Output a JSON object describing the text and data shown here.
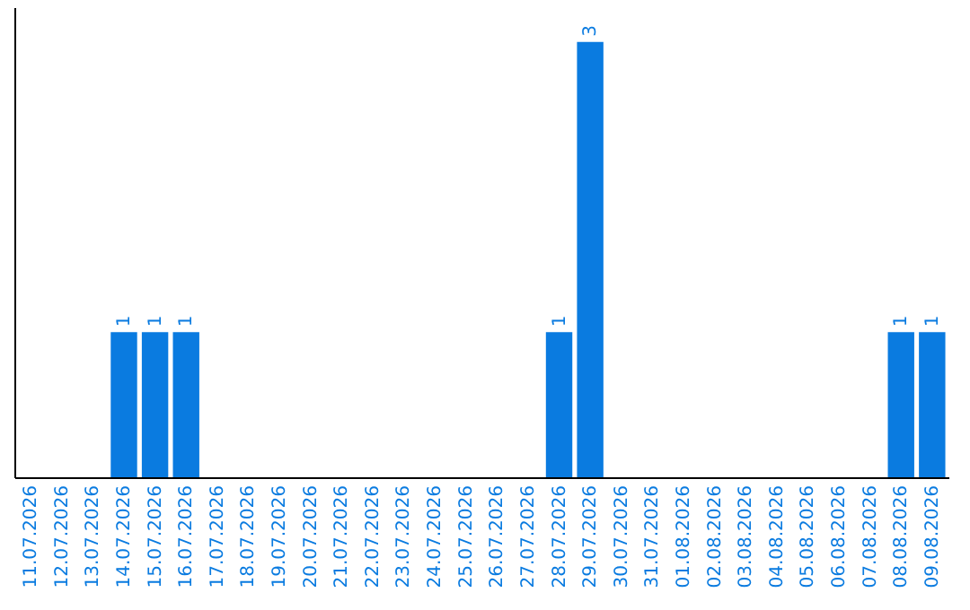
{
  "chart_data": {
    "type": "bar",
    "categories": [
      "11.07.2026",
      "12.07.2026",
      "13.07.2026",
      "14.07.2026",
      "15.07.2026",
      "16.07.2026",
      "17.07.2026",
      "18.07.2026",
      "19.07.2026",
      "20.07.2026",
      "21.07.2026",
      "22.07.2026",
      "23.07.2026",
      "24.07.2026",
      "25.07.2026",
      "26.07.2026",
      "27.07.2026",
      "28.07.2026",
      "29.07.2026",
      "30.07.2026",
      "31.07.2026",
      "01.08.2026",
      "02.08.2026",
      "03.08.2026",
      "04.08.2026",
      "05.08.2026",
      "06.08.2026",
      "07.08.2026",
      "08.08.2026",
      "09.08.2026"
    ],
    "values": [
      0,
      0,
      0,
      1,
      1,
      1,
      0,
      0,
      0,
      0,
      0,
      0,
      0,
      0,
      0,
      0,
      0,
      1,
      3,
      0,
      0,
      0,
      0,
      0,
      0,
      0,
      0,
      0,
      1,
      1
    ],
    "value_labels": [
      null,
      null,
      null,
      "1",
      "1",
      "1",
      null,
      null,
      null,
      null,
      null,
      null,
      null,
      null,
      null,
      null,
      null,
      "1",
      "3",
      null,
      null,
      null,
      null,
      null,
      null,
      null,
      null,
      null,
      "1",
      "1"
    ],
    "color": "#0a7be0",
    "tick_labels": "x",
    "grid": false
  }
}
